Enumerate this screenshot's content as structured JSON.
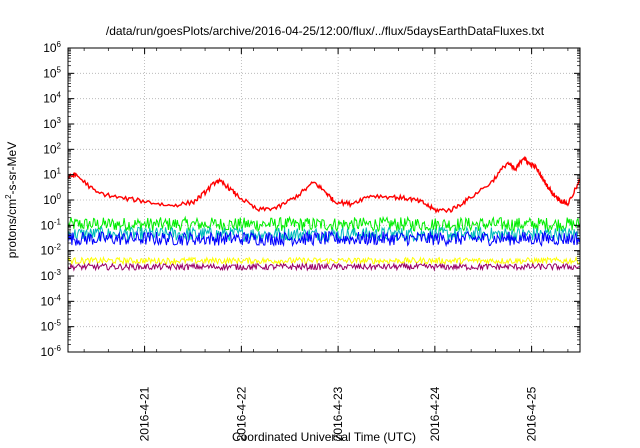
{
  "chart_data": {
    "type": "line",
    "title": "/data/run/goesPlots/archive/2016-04-25/12:00/flux/../flux/5daysEarthDataFluxes.txt",
    "xlabel": "Coordinated Universal Time (UTC)",
    "ylabel": {
      "base": "protons/cm",
      "sup": "2",
      "rest": "-s-sr-MeV"
    },
    "x_tick_labels": [
      "2016-4-21",
      "2016-4-22",
      "2016-4-23",
      "2016-4-24",
      "2016-4-25"
    ],
    "xlim": [
      "2016-04-20 05:00",
      "2016-04-25 12:00"
    ],
    "y_scale": "log",
    "ylim": [
      1e-06,
      1000000.0
    ],
    "y_tick_exponents": [
      -6,
      -5,
      -4,
      -3,
      -2,
      -1,
      0,
      1,
      2,
      3,
      4,
      5,
      6
    ],
    "grid": true,
    "series": [
      {
        "color": "#ff0000",
        "x": [
          "2016-04-20 05:00",
          "2016-04-20 07:00",
          "2016-04-20 12:00",
          "2016-04-20 18:00",
          "2016-04-21 00:00",
          "2016-04-21 06:00",
          "2016-04-21 12:00",
          "2016-04-21 15:00",
          "2016-04-21 18:00",
          "2016-04-21 20:00",
          "2016-04-21 23:00",
          "2016-04-22 04:00",
          "2016-04-22 09:00",
          "2016-04-22 14:00",
          "2016-04-22 18:00",
          "2016-04-22 21:00",
          "2016-04-22 23:00",
          "2016-04-23 03:00",
          "2016-04-23 08:00",
          "2016-04-23 14:00",
          "2016-04-23 18:00",
          "2016-04-23 21:00",
          "2016-04-24 00:00",
          "2016-04-24 04:00",
          "2016-04-24 08:00",
          "2016-04-24 14:00",
          "2016-04-24 18:00",
          "2016-04-24 20:00",
          "2016-04-24 22:00",
          "2016-04-24 23:00",
          "2016-04-25 01:00",
          "2016-04-25 03:00",
          "2016-04-25 05:00",
          "2016-04-25 07:00",
          "2016-04-25 09:00",
          "2016-04-25 12:00"
        ],
        "values": [
          8,
          10,
          2,
          1.2,
          0.9,
          0.6,
          0.8,
          2,
          6,
          4,
          1.5,
          0.4,
          0.5,
          1.5,
          5,
          2,
          0.9,
          0.7,
          1.5,
          1.3,
          1.1,
          0.8,
          0.4,
          0.4,
          1,
          5,
          30,
          15,
          50,
          30,
          20,
          6,
          2,
          1,
          0.7,
          6
        ]
      },
      {
        "color": "#00ee00",
        "level": 0.11,
        "x_range": [
          "2016-04-20 05:00",
          "2016-04-25 12:00"
        ]
      },
      {
        "color": "#00bbbb",
        "level": 0.045,
        "x_range": [
          "2016-04-20 05:00",
          "2016-04-25 12:00"
        ]
      },
      {
        "color": "#0000ff",
        "level": 0.03,
        "x_range": [
          "2016-04-20 05:00",
          "2016-04-25 12:00"
        ]
      },
      {
        "color": "#ffff00",
        "level": 0.004,
        "x_range": [
          "2016-04-20 05:00",
          "2016-04-25 12:00"
        ]
      },
      {
        "color": "#990066",
        "level": 0.0023,
        "x_range": [
          "2016-04-20 05:00",
          "2016-04-25 12:00"
        ]
      }
    ]
  }
}
